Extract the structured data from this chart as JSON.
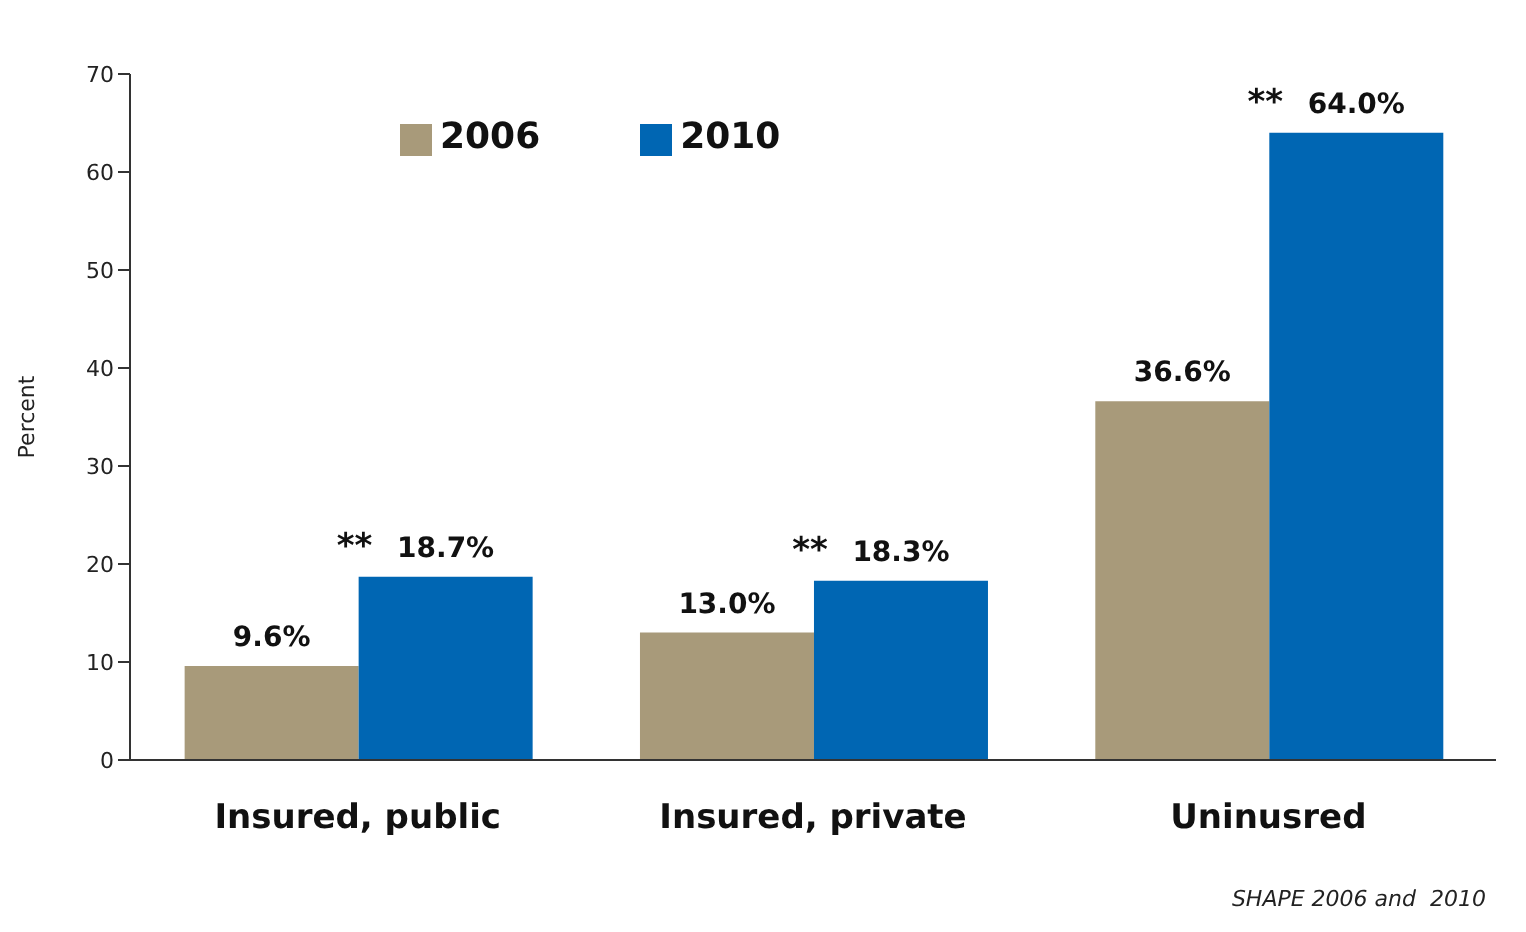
{
  "chart_data": {
    "type": "bar",
    "ylabel": "Percent",
    "categories": [
      "Insured, public",
      "Insured, private",
      "Uninusred"
    ],
    "series": [
      {
        "name": "2006",
        "color": "#a89a7a",
        "values": [
          9.6,
          13.0,
          36.6
        ],
        "value_labels": [
          "9.6%",
          "13.0%",
          "36.6%"
        ]
      },
      {
        "name": "2010",
        "color": "#0066b3",
        "values": [
          18.7,
          18.3,
          64.0
        ],
        "value_labels": [
          "18.7%",
          "18.3%",
          "64.0%"
        ]
      }
    ],
    "ylim": [
      0,
      70
    ],
    "yticks": [
      0,
      10,
      20,
      30,
      40,
      50,
      60,
      70
    ],
    "grid": false,
    "legend": "top",
    "annotations": [
      {
        "text": "**",
        "x": "Insured, public",
        "y": 18.7
      },
      {
        "text": "**",
        "x": "Insured, private",
        "y": 18.3
      },
      {
        "text": "**",
        "x": "Uninusred",
        "y": 64.0
      },
      "SHAPE 2006 and  2010"
    ]
  }
}
